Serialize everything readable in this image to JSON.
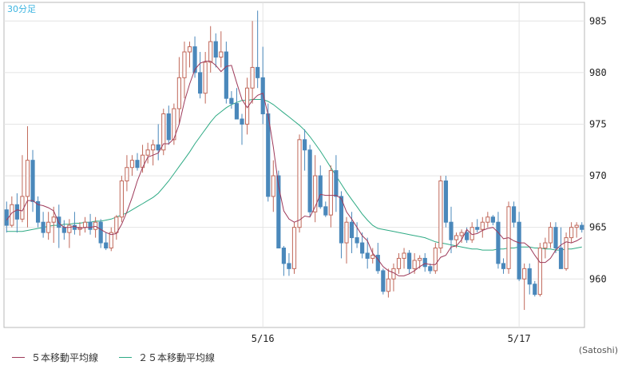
{
  "chart_data": {
    "type": "candlestick",
    "title": "30分足",
    "credit": "(Satoshi)",
    "y_axis": {
      "ticks": [
        985,
        980,
        975,
        970,
        965,
        960
      ],
      "range": [
        955.3,
        986.8
      ],
      "position": "right"
    },
    "x_axis": {
      "ticks": [
        {
          "label": "5/16",
          "index": 49
        },
        {
          "label": "5/17",
          "index": 98
        }
      ]
    },
    "grid": true,
    "series_colors": {
      "up": "#c0685a",
      "down": "#4a88bb",
      "ma5": "#9e3a5a",
      "ma25": "#2eaa84"
    },
    "legend": [
      {
        "name": "５本移動平均線",
        "color": "#9e3a5a"
      },
      {
        "name": "２５本移動平均線",
        "color": "#2eaa84"
      }
    ],
    "candles": [
      [
        966.7,
        967.5,
        964.5,
        965.2
      ],
      [
        965.2,
        968.0,
        965.0,
        967.2
      ],
      [
        967.2,
        968.3,
        964.5,
        965.8
      ],
      [
        965.8,
        972.0,
        965.5,
        968.0
      ],
      [
        968.0,
        974.8,
        965.0,
        971.5
      ],
      [
        971.5,
        972.5,
        966.5,
        967.5
      ],
      [
        967.5,
        968.0,
        965.0,
        965.5
      ],
      [
        965.5,
        966.5,
        964.0,
        964.5
      ],
      [
        964.5,
        966.5,
        963.8,
        965.5
      ],
      [
        965.5,
        967.0,
        963.5,
        966.0
      ],
      [
        966.0,
        967.2,
        963.0,
        965.0
      ],
      [
        965.0,
        965.7,
        963.8,
        964.5
      ],
      [
        964.5,
        965.8,
        963.0,
        965.2
      ],
      [
        965.2,
        966.5,
        964.3,
        964.8
      ],
      [
        964.8,
        965.5,
        964.2,
        965.0
      ],
      [
        965.0,
        966.0,
        964.5,
        965.5
      ],
      [
        965.5,
        966.3,
        964.3,
        964.8
      ],
      [
        964.8,
        966.0,
        964.0,
        965.5
      ],
      [
        965.5,
        965.8,
        963.0,
        963.5
      ],
      [
        963.5,
        964.5,
        962.8,
        963.0
      ],
      [
        963.0,
        965.0,
        962.7,
        964.5
      ],
      [
        964.5,
        966.2,
        963.8,
        966.0
      ],
      [
        966.0,
        970.0,
        965.5,
        969.5
      ],
      [
        969.5,
        972.0,
        968.5,
        970.8
      ],
      [
        970.8,
        972.0,
        970.0,
        971.5
      ],
      [
        971.5,
        972.2,
        970.5,
        970.8
      ],
      [
        970.8,
        973.0,
        970.3,
        972.0
      ],
      [
        972.0,
        973.2,
        971.2,
        972.5
      ],
      [
        972.5,
        973.5,
        971.0,
        973.0
      ],
      [
        973.0,
        975.0,
        971.5,
        972.5
      ],
      [
        972.5,
        976.5,
        972.0,
        976.0
      ],
      [
        976.0,
        976.8,
        973.0,
        973.5
      ],
      [
        973.5,
        977.0,
        973.0,
        976.5
      ],
      [
        976.5,
        981.5,
        975.0,
        979.5
      ],
      [
        979.5,
        983.0,
        977.5,
        982.0
      ],
      [
        982.0,
        983.0,
        980.5,
        982.5
      ],
      [
        982.5,
        983.5,
        979.5,
        980.0
      ],
      [
        980.0,
        982.0,
        977.5,
        978.0
      ],
      [
        978.0,
        982.0,
        977.0,
        981.0
      ],
      [
        981.0,
        984.5,
        980.0,
        983.0
      ],
      [
        983.0,
        983.8,
        980.5,
        981.5
      ],
      [
        981.5,
        984.0,
        980.5,
        982.0
      ],
      [
        982.0,
        983.0,
        977.0,
        977.5
      ],
      [
        977.5,
        978.2,
        976.5,
        977.0
      ],
      [
        977.0,
        978.5,
        975.5,
        975.5
      ],
      [
        975.5,
        976.0,
        973.0,
        975.0
      ],
      [
        975.0,
        979.5,
        974.0,
        978.5
      ],
      [
        978.5,
        985.0,
        977.0,
        980.5
      ],
      [
        980.5,
        986.0,
        978.5,
        979.5
      ],
      [
        979.5,
        982.5,
        975.0,
        976.0
      ],
      [
        976.0,
        977.0,
        967.5,
        968.0
      ],
      [
        968.0,
        971.5,
        966.5,
        970.0
      ],
      [
        970.0,
        970.5,
        963.0,
        963.0
      ],
      [
        963.0,
        963.2,
        960.3,
        961.5
      ],
      [
        961.5,
        962.5,
        960.3,
        961.0
      ],
      [
        961.0,
        965.5,
        960.5,
        965.0
      ],
      [
        965.0,
        974.0,
        964.5,
        973.5
      ],
      [
        973.5,
        974.5,
        970.5,
        972.5
      ],
      [
        972.5,
        973.0,
        966.0,
        966.5
      ],
      [
        966.5,
        972.0,
        965.5,
        970.0
      ],
      [
        970.0,
        971.0,
        966.8,
        967.0
      ],
      [
        967.0,
        967.5,
        966.0,
        966.2
      ],
      [
        966.2,
        971.0,
        965.0,
        970.5
      ],
      [
        970.5,
        972.0,
        966.5,
        968.0
      ],
      [
        968.0,
        968.5,
        962.0,
        963.5
      ],
      [
        963.5,
        966.0,
        961.5,
        965.5
      ],
      [
        965.5,
        966.5,
        962.5,
        964.0
      ],
      [
        964.0,
        965.5,
        963.0,
        963.5
      ],
      [
        963.5,
        964.5,
        962.0,
        962.5
      ],
      [
        962.5,
        964.0,
        961.0,
        962.0
      ],
      [
        962.0,
        963.0,
        961.5,
        962.3
      ],
      [
        962.3,
        963.5,
        960.5,
        960.8
      ],
      [
        960.8,
        961.0,
        958.5,
        958.8
      ],
      [
        958.8,
        961.0,
        958.2,
        960.0
      ],
      [
        960.0,
        961.5,
        958.8,
        961.0
      ],
      [
        961.0,
        962.5,
        960.5,
        962.0
      ],
      [
        962.0,
        963.0,
        961.0,
        962.5
      ],
      [
        962.5,
        962.8,
        960.5,
        961.0
      ],
      [
        961.0,
        962.5,
        960.5,
        961.8
      ],
      [
        961.8,
        962.3,
        961.0,
        962.0
      ],
      [
        962.0,
        962.5,
        960.7,
        961.2
      ],
      [
        961.2,
        961.5,
        960.5,
        960.8
      ],
      [
        960.8,
        963.5,
        960.5,
        963.0
      ],
      [
        963.0,
        970.0,
        962.5,
        969.5
      ],
      [
        969.5,
        970.0,
        965.0,
        965.5
      ],
      [
        965.5,
        967.0,
        962.5,
        963.8
      ],
      [
        963.8,
        964.5,
        963.0,
        964.2
      ],
      [
        964.2,
        964.8,
        963.5,
        964.5
      ],
      [
        964.5,
        965.0,
        963.5,
        963.8
      ],
      [
        963.8,
        965.5,
        963.5,
        965.0
      ],
      [
        965.0,
        965.8,
        964.5,
        964.8
      ],
      [
        964.8,
        966.0,
        964.0,
        965.5
      ],
      [
        965.5,
        966.5,
        965.0,
        966.0
      ],
      [
        966.0,
        966.2,
        965.2,
        965.5
      ],
      [
        965.5,
        966.5,
        961.0,
        961.5
      ],
      [
        961.5,
        962.0,
        960.5,
        961.0
      ],
      [
        961.0,
        967.5,
        960.5,
        967.0
      ],
      [
        967.0,
        967.5,
        965.0,
        965.5
      ],
      [
        965.5,
        966.5,
        959.8,
        960.0
      ],
      [
        960.0,
        961.5,
        957.0,
        961.0
      ],
      [
        961.0,
        961.5,
        958.5,
        959.5
      ],
      [
        959.5,
        959.8,
        958.3,
        958.5
      ],
      [
        958.5,
        963.5,
        958.3,
        963.0
      ],
      [
        963.0,
        964.0,
        962.0,
        963.5
      ],
      [
        963.5,
        965.5,
        963.0,
        965.0
      ],
      [
        965.0,
        965.5,
        962.5,
        963.0
      ],
      [
        963.0,
        965.0,
        961.0,
        961.0
      ],
      [
        961.0,
        964.5,
        960.8,
        964.0
      ],
      [
        964.0,
        965.5,
        963.5,
        965.0
      ],
      [
        965.0,
        965.5,
        964.0,
        965.2
      ],
      [
        965.2,
        965.5,
        964.5,
        964.8
      ]
    ],
    "ma5": [
      965.7,
      966.4,
      966.7,
      966.6,
      967.6,
      967.6,
      967.2,
      967.1,
      966.9,
      966.6,
      965.4,
      965.0,
      965.0,
      965.1,
      964.9,
      965.0,
      965.0,
      965.1,
      964.8,
      964.5,
      964.3,
      964.4,
      965.3,
      966.5,
      967.9,
      969.5,
      970.8,
      971.8,
      972.0,
      972.2,
      973.1,
      973.1,
      973.6,
      975.0,
      977.2,
      978.9,
      980.3,
      980.9,
      981.1,
      981.1,
      980.7,
      980.1,
      980.6,
      980.7,
      979.0,
      977.4,
      976.6,
      977.3,
      977.8,
      978.0,
      975.9,
      972.8,
      969.0,
      966.6,
      965.8,
      965.5,
      965.7,
      966.1,
      966.0,
      967.0,
      968.2,
      968.1,
      968.1,
      968.1,
      967.8,
      966.5,
      965.8,
      965.0,
      964.2,
      963.7,
      962.5,
      961.9,
      961.2,
      960.8,
      960.6,
      960.3,
      960.3,
      960.5,
      960.8,
      961.2,
      961.5,
      961.4,
      961.4,
      962.1,
      962.3,
      963.1,
      963.2,
      963.8,
      964.8,
      964.3,
      964.4,
      964.7,
      964.9,
      965.0,
      964.5,
      963.9,
      964.0,
      963.7,
      963.5,
      963.5,
      963.1,
      962.3,
      961.6,
      961.6,
      962.0,
      962.8,
      963.3,
      963.6,
      963.5,
      963.7,
      964.0
    ],
    "ma25": [
      964.6,
      964.6,
      964.6,
      964.6,
      964.7,
      964.8,
      964.9,
      965.0,
      965.1,
      965.2,
      965.2,
      965.3,
      965.3,
      965.4,
      965.4,
      965.5,
      965.5,
      965.6,
      965.6,
      965.7,
      965.8,
      966.0,
      966.2,
      966.4,
      966.7,
      967.0,
      967.3,
      967.6,
      967.9,
      968.3,
      968.9,
      969.5,
      970.2,
      970.9,
      971.6,
      972.3,
      973.1,
      973.8,
      974.5,
      975.2,
      975.8,
      976.2,
      976.6,
      976.9,
      977.1,
      977.3,
      977.3,
      977.4,
      977.4,
      977.4,
      977.2,
      976.9,
      976.5,
      976.1,
      975.7,
      975.3,
      974.9,
      974.4,
      973.8,
      973.1,
      972.4,
      971.6,
      970.8,
      970.0,
      969.2,
      968.4,
      967.7,
      967.0,
      966.3,
      965.7,
      965.2,
      964.9,
      964.8,
      964.7,
      964.6,
      964.5,
      964.4,
      964.3,
      964.2,
      964.1,
      964.0,
      963.8,
      963.6,
      963.5,
      963.4,
      963.3,
      963.2,
      963.1,
      963.0,
      962.9,
      962.9,
      962.8,
      962.8,
      962.8,
      962.9,
      962.9,
      963.0,
      963.0,
      963.1,
      963.1,
      963.1,
      963.0,
      963.0,
      962.9,
      962.9,
      962.8,
      962.8,
      962.9,
      962.9,
      963.0,
      963.1
    ]
  }
}
